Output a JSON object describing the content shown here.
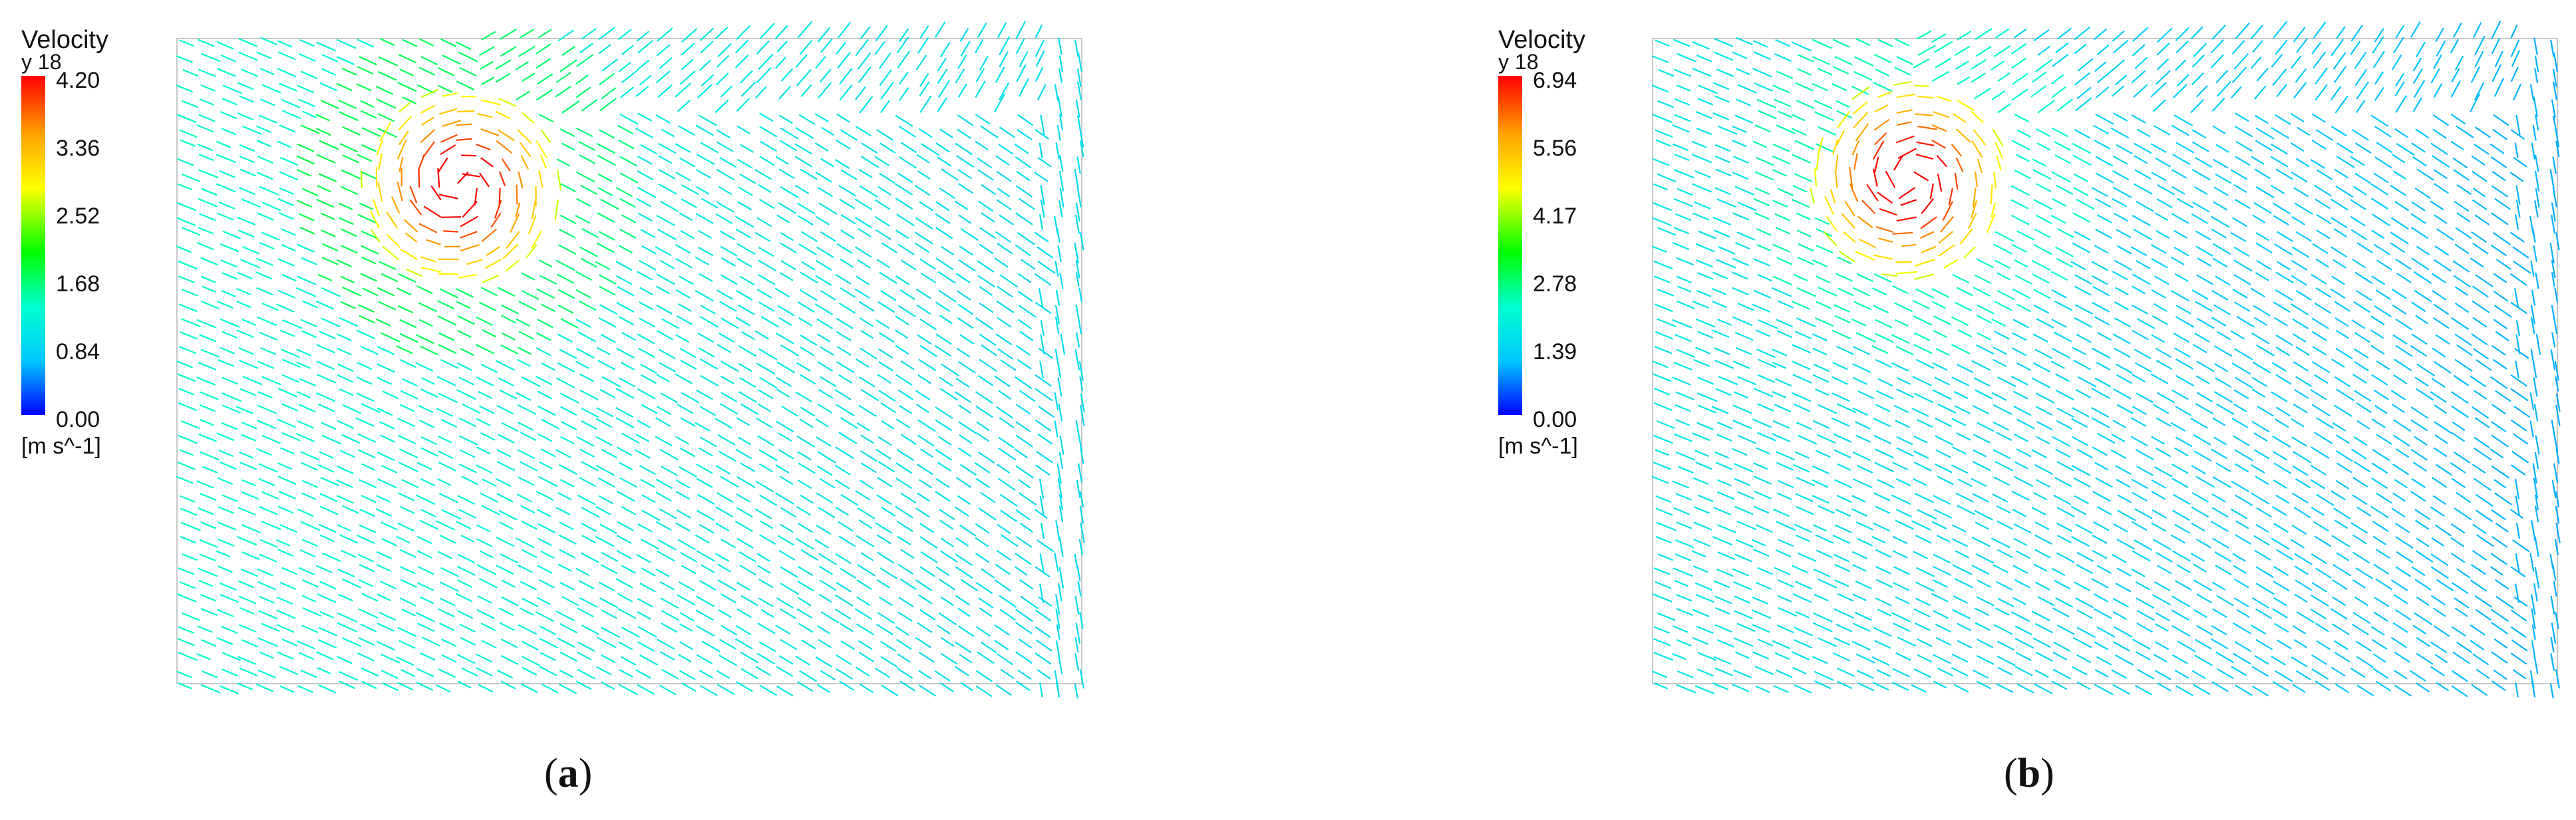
{
  "panels": [
    {
      "id": "a",
      "caption_letter": "a",
      "legend": {
        "title": "Velocity",
        "subtitle": "y 18",
        "ticks": [
          "4.20",
          "3.36",
          "2.52",
          "1.68",
          "0.84",
          "0.00"
        ],
        "unit": "[m s^-1]"
      }
    },
    {
      "id": "b",
      "caption_letter": "b",
      "legend": {
        "title": "Velocity",
        "subtitle": "y 18",
        "ticks": [
          "6.94",
          "5.56",
          "4.17",
          "2.78",
          "1.39",
          "0.00"
        ],
        "unit": "[m s^-1]"
      }
    }
  ],
  "colors": {
    "colormap": [
      "#0000ff",
      "#00c8ff",
      "#00ffd0",
      "#00ff00",
      "#ffff00",
      "#ffa000",
      "#ff0000"
    ]
  }
}
